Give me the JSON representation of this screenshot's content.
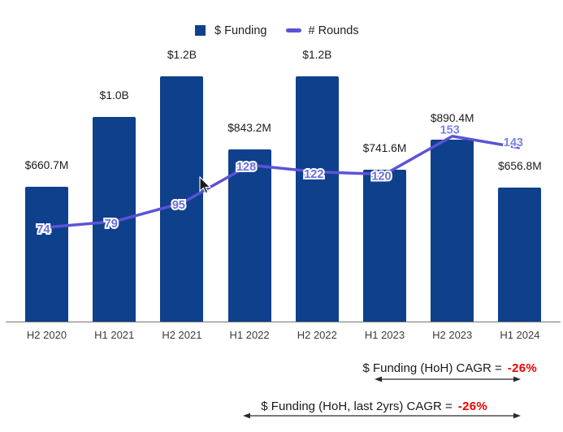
{
  "legend": {
    "funding": "$ Funding",
    "rounds": "# Rounds"
  },
  "chart_data": {
    "type": "bar+line",
    "title": "",
    "xlabel": "",
    "ylabel": "",
    "categories": [
      "H2 2020",
      "H1 2021",
      "H2 2021",
      "H1 2022",
      "H2 2022",
      "H1 2023",
      "H2 2023",
      "H1 2024"
    ],
    "series": [
      {
        "name": "$ Funding",
        "chart_type": "bar",
        "unit": "USD millions",
        "values": [
          660.7,
          1000,
          1200,
          843.2,
          1200,
          741.6,
          890.4,
          656.8
        ],
        "point_labels": [
          "$660.7M",
          "$1.0B",
          "$1.2B",
          "$843.2M",
          "$1.2B",
          "$741.6M",
          "$890.4M",
          "$656.8M"
        ]
      },
      {
        "name": "# Rounds",
        "chart_type": "line",
        "values": [
          74,
          79,
          95,
          128,
          122,
          120,
          153,
          143
        ]
      }
    ],
    "legend_position": "top",
    "grid": false,
    "colors": {
      "bar": "#0e408c",
      "line": "#5b53d6",
      "line_label": "#6b6edd",
      "line_label_light": "#7b84e6",
      "negative": "#ee0000",
      "axis": "#757575"
    }
  },
  "annotations": [
    {
      "label": "$ Funding (HoH) CAGR =",
      "value": "-26%"
    },
    {
      "label": "$ Funding (HoH, last 2yrs) CAGR =",
      "value": "-26%"
    }
  ]
}
